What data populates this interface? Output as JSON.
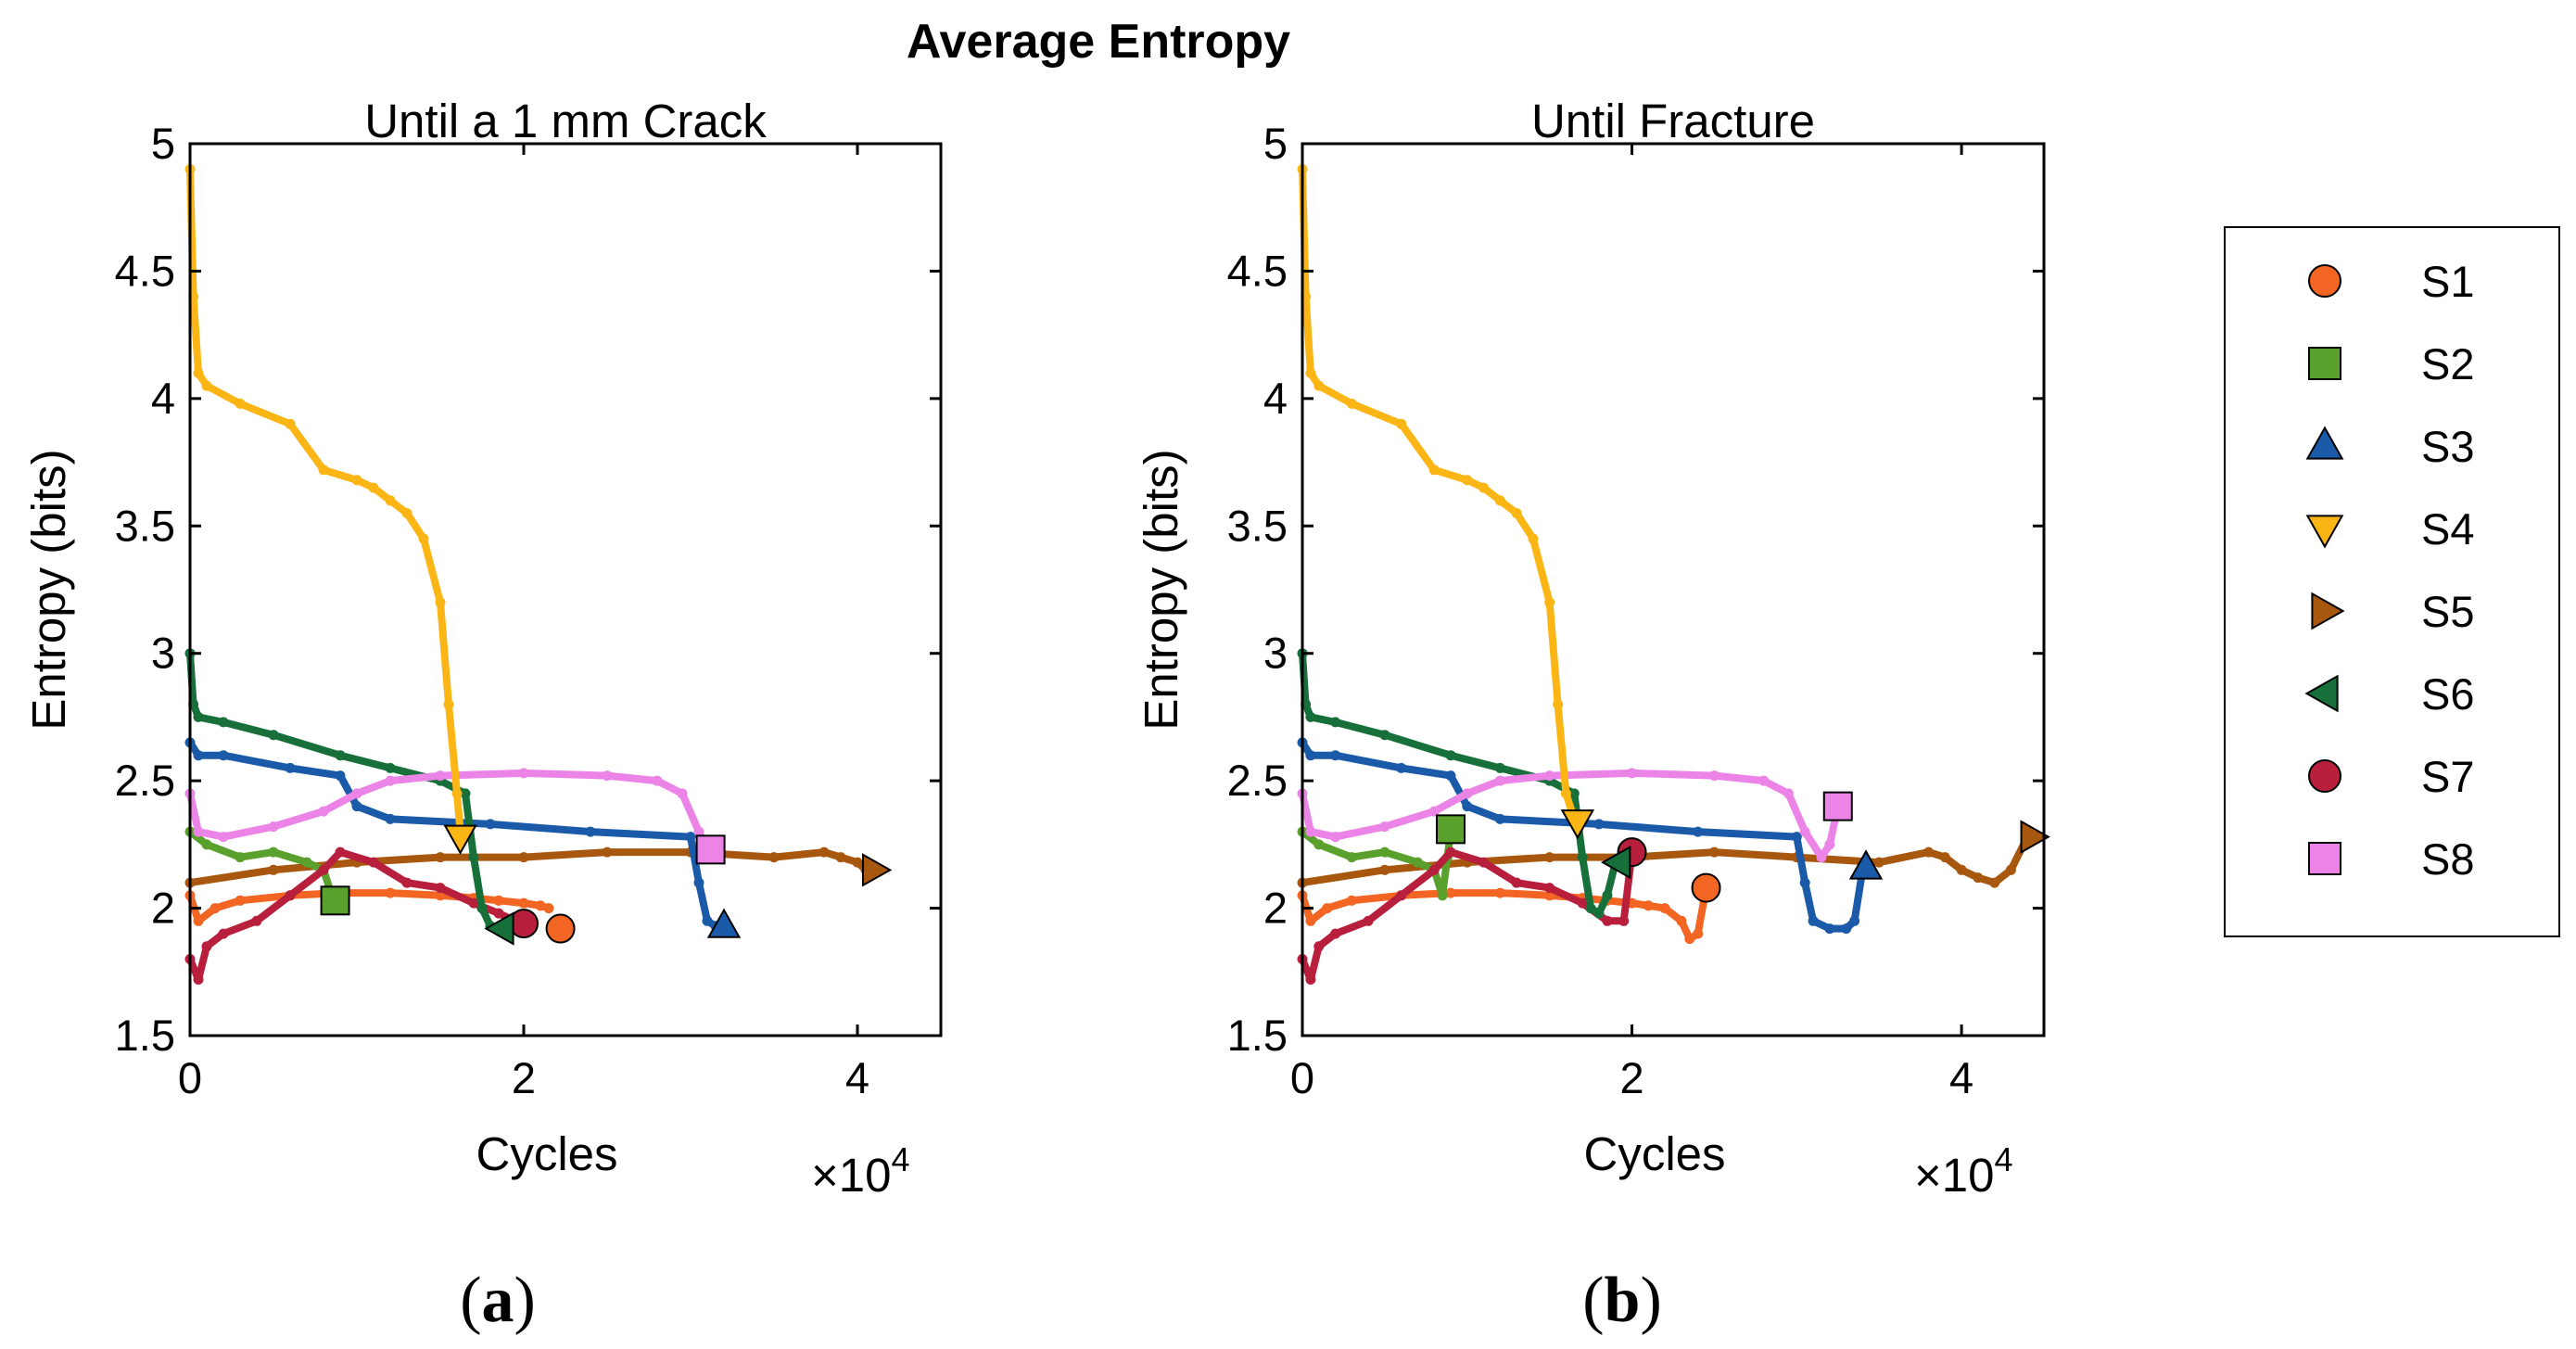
{
  "figure": {
    "title": "Average Entropy"
  },
  "chart_data": [
    {
      "type": "line",
      "panel_label": "a",
      "title": "Until a 1 mm Crack",
      "xlabel": "Cycles",
      "ylabel": "Entropy (bits)",
      "x_multiplier_label": "×10",
      "x_multiplier_exp": "4",
      "xlim": [
        0,
        4.5
      ],
      "ylim": [
        1.5,
        5
      ],
      "xticks": [
        0,
        2,
        4
      ],
      "yticks": [
        1.5,
        2,
        2.5,
        3,
        3.5,
        4,
        4.5,
        5
      ],
      "xtick_labels": [
        "0",
        "2",
        "4"
      ],
      "ytick_labels": [
        "1.5",
        "2",
        "2.5",
        "3",
        "3.5",
        "4",
        "4.5",
        "5"
      ],
      "x_units_note": "cycles ×10^4",
      "series": [
        {
          "name": "S1",
          "x": [
            0,
            0.05,
            0.15,
            0.3,
            0.6,
            0.9,
            1.2,
            1.5,
            1.7,
            1.85,
            2.0,
            2.1,
            2.15
          ],
          "y": [
            2.05,
            1.95,
            2.0,
            2.03,
            2.05,
            2.06,
            2.06,
            2.05,
            2.04,
            2.03,
            2.02,
            2.01,
            2.0
          ],
          "end": [
            2.22,
            1.92
          ]
        },
        {
          "name": "S2",
          "x": [
            0,
            0.1,
            0.3,
            0.5,
            0.7,
            0.8,
            0.85
          ],
          "y": [
            2.3,
            2.25,
            2.2,
            2.22,
            2.18,
            2.15,
            2.05
          ],
          "end": [
            0.87,
            2.03
          ]
        },
        {
          "name": "S3",
          "x": [
            0,
            0.05,
            0.2,
            0.6,
            0.9,
            1.0,
            1.2,
            1.8,
            2.4,
            3.0,
            3.05,
            3.1,
            3.15
          ],
          "y": [
            2.65,
            2.6,
            2.6,
            2.55,
            2.52,
            2.4,
            2.35,
            2.33,
            2.3,
            2.28,
            2.1,
            1.95,
            1.93
          ],
          "end": [
            3.2,
            1.93
          ]
        },
        {
          "name": "S4",
          "x": [
            0,
            0.02,
            0.05,
            0.1,
            0.3,
            0.6,
            0.8,
            1.0,
            1.1,
            1.2,
            1.3,
            1.4,
            1.5,
            1.55,
            1.6,
            1.62
          ],
          "y": [
            4.9,
            4.4,
            4.1,
            4.05,
            3.98,
            3.9,
            3.72,
            3.68,
            3.65,
            3.6,
            3.55,
            3.45,
            3.2,
            2.8,
            2.45,
            2.3
          ],
          "end": [
            1.62,
            2.28
          ]
        },
        {
          "name": "S5",
          "x": [
            0,
            0.5,
            1.0,
            1.5,
            2.0,
            2.5,
            3.0,
            3.5,
            3.8,
            3.9,
            4.0,
            4.05
          ],
          "y": [
            2.1,
            2.15,
            2.18,
            2.2,
            2.2,
            2.22,
            2.22,
            2.2,
            2.22,
            2.2,
            2.18,
            2.15
          ],
          "end": [
            4.1,
            2.15
          ]
        },
        {
          "name": "S6",
          "x": [
            0,
            0.02,
            0.05,
            0.2,
            0.5,
            0.9,
            1.2,
            1.5,
            1.65,
            1.7,
            1.75,
            1.8
          ],
          "y": [
            3.0,
            2.8,
            2.75,
            2.73,
            2.68,
            2.6,
            2.55,
            2.5,
            2.45,
            2.2,
            2.0,
            1.93
          ],
          "end": [
            1.87,
            1.92
          ]
        },
        {
          "name": "S7",
          "x": [
            0,
            0.05,
            0.1,
            0.2,
            0.4,
            0.6,
            0.8,
            0.9,
            1.1,
            1.3,
            1.5,
            1.7,
            1.85,
            1.95
          ],
          "y": [
            1.8,
            1.72,
            1.85,
            1.9,
            1.95,
            2.05,
            2.15,
            2.22,
            2.18,
            2.1,
            2.08,
            2.02,
            1.98,
            1.95
          ],
          "end": [
            2.0,
            1.94
          ]
        },
        {
          "name": "S8",
          "x": [
            0,
            0.05,
            0.2,
            0.5,
            0.8,
            1.0,
            1.2,
            1.5,
            2.0,
            2.5,
            2.8,
            2.95,
            3.05,
            3.1
          ],
          "y": [
            2.45,
            2.3,
            2.28,
            2.32,
            2.38,
            2.45,
            2.5,
            2.52,
            2.53,
            2.52,
            2.5,
            2.45,
            2.3,
            2.23
          ],
          "end": [
            3.12,
            2.23
          ]
        }
      ]
    },
    {
      "type": "line",
      "panel_label": "b",
      "title": "Until Fracture",
      "xlabel": "Cycles",
      "ylabel": "Entropy (bits)",
      "x_multiplier_label": "×10",
      "x_multiplier_exp": "4",
      "xlim": [
        0,
        4.5
      ],
      "ylim": [
        1.5,
        5
      ],
      "xticks": [
        0,
        2,
        4
      ],
      "yticks": [
        1.5,
        2,
        2.5,
        3,
        3.5,
        4,
        4.5,
        5
      ],
      "xtick_labels": [
        "0",
        "2",
        "4"
      ],
      "ytick_labels": [
        "1.5",
        "2",
        "2.5",
        "3",
        "3.5",
        "4",
        "4.5",
        "5"
      ],
      "x_units_note": "cycles ×10^4",
      "series": [
        {
          "name": "S1",
          "x": [
            0,
            0.05,
            0.15,
            0.3,
            0.6,
            0.9,
            1.2,
            1.5,
            1.7,
            1.85,
            2.0,
            2.1,
            2.2,
            2.3,
            2.35,
            2.4,
            2.45
          ],
          "y": [
            2.05,
            1.95,
            2.0,
            2.03,
            2.05,
            2.06,
            2.06,
            2.05,
            2.04,
            2.03,
            2.02,
            2.01,
            2.0,
            1.95,
            1.88,
            1.9,
            2.08
          ],
          "end": [
            2.45,
            2.08
          ]
        },
        {
          "name": "S2",
          "x": [
            0,
            0.1,
            0.3,
            0.5,
            0.7,
            0.8,
            0.85,
            0.88,
            0.9
          ],
          "y": [
            2.3,
            2.25,
            2.2,
            2.22,
            2.18,
            2.15,
            2.05,
            2.2,
            2.3
          ],
          "end": [
            0.9,
            2.31
          ]
        },
        {
          "name": "S3",
          "x": [
            0,
            0.05,
            0.2,
            0.6,
            0.9,
            1.0,
            1.2,
            1.8,
            2.4,
            3.0,
            3.05,
            3.1,
            3.2,
            3.3,
            3.35,
            3.4
          ],
          "y": [
            2.65,
            2.6,
            2.6,
            2.55,
            2.52,
            2.4,
            2.35,
            2.33,
            2.3,
            2.28,
            2.1,
            1.95,
            1.92,
            1.92,
            1.95,
            2.15
          ],
          "end": [
            3.42,
            2.16
          ]
        },
        {
          "name": "S4",
          "x": [
            0,
            0.02,
            0.05,
            0.1,
            0.3,
            0.6,
            0.8,
            1.0,
            1.1,
            1.2,
            1.3,
            1.4,
            1.5,
            1.55,
            1.6,
            1.65
          ],
          "y": [
            4.9,
            4.4,
            4.1,
            4.05,
            3.98,
            3.9,
            3.72,
            3.68,
            3.65,
            3.6,
            3.55,
            3.45,
            3.2,
            2.8,
            2.45,
            2.35
          ],
          "end": [
            1.67,
            2.34
          ]
        },
        {
          "name": "S5",
          "x": [
            0,
            0.5,
            1.0,
            1.5,
            2.0,
            2.5,
            3.0,
            3.5,
            3.8,
            3.9,
            4.0,
            4.1,
            4.2,
            4.3,
            4.4
          ],
          "y": [
            2.1,
            2.15,
            2.18,
            2.2,
            2.2,
            2.22,
            2.2,
            2.18,
            2.22,
            2.2,
            2.15,
            2.12,
            2.1,
            2.15,
            2.28
          ],
          "end": [
            4.43,
            2.28
          ]
        },
        {
          "name": "S6",
          "x": [
            0,
            0.02,
            0.05,
            0.2,
            0.5,
            0.9,
            1.2,
            1.5,
            1.65,
            1.7,
            1.75,
            1.8,
            1.85,
            1.9
          ],
          "y": [
            3.0,
            2.8,
            2.75,
            2.73,
            2.68,
            2.6,
            2.55,
            2.5,
            2.45,
            2.2,
            2.0,
            1.98,
            2.05,
            2.18
          ],
          "end": [
            1.92,
            2.18
          ]
        },
        {
          "name": "S7",
          "x": [
            0,
            0.05,
            0.1,
            0.2,
            0.4,
            0.6,
            0.8,
            0.9,
            1.1,
            1.3,
            1.5,
            1.7,
            1.85,
            1.95,
            2.0
          ],
          "y": [
            1.8,
            1.72,
            1.85,
            1.9,
            1.95,
            2.05,
            2.15,
            2.22,
            2.18,
            2.1,
            2.08,
            2.02,
            1.95,
            1.95,
            2.22
          ],
          "end": [
            2.0,
            2.22
          ]
        },
        {
          "name": "S8",
          "x": [
            0,
            0.05,
            0.2,
            0.5,
            0.8,
            1.0,
            1.2,
            1.5,
            2.0,
            2.5,
            2.8,
            2.95,
            3.05,
            3.15,
            3.2,
            3.25
          ],
          "y": [
            2.45,
            2.3,
            2.28,
            2.32,
            2.38,
            2.45,
            2.5,
            2.52,
            2.53,
            2.52,
            2.5,
            2.45,
            2.3,
            2.2,
            2.25,
            2.4
          ],
          "end": [
            3.25,
            2.4
          ]
        }
      ]
    }
  ],
  "legend": {
    "entries": [
      {
        "name": "S1",
        "color": "#f26522",
        "marker": "circle"
      },
      {
        "name": "S2",
        "color": "#5aa02c",
        "marker": "square"
      },
      {
        "name": "S3",
        "color": "#1a5aa8",
        "marker": "triangle-up"
      },
      {
        "name": "S4",
        "color": "#fbb615",
        "marker": "triangle-down"
      },
      {
        "name": "S5",
        "color": "#a8570f",
        "marker": "triangle-right"
      },
      {
        "name": "S6",
        "color": "#17703a",
        "marker": "triangle-left"
      },
      {
        "name": "S7",
        "color": "#b81f3c",
        "marker": "circle"
      },
      {
        "name": "S8",
        "color": "#ec83e7",
        "marker": "square"
      }
    ]
  }
}
